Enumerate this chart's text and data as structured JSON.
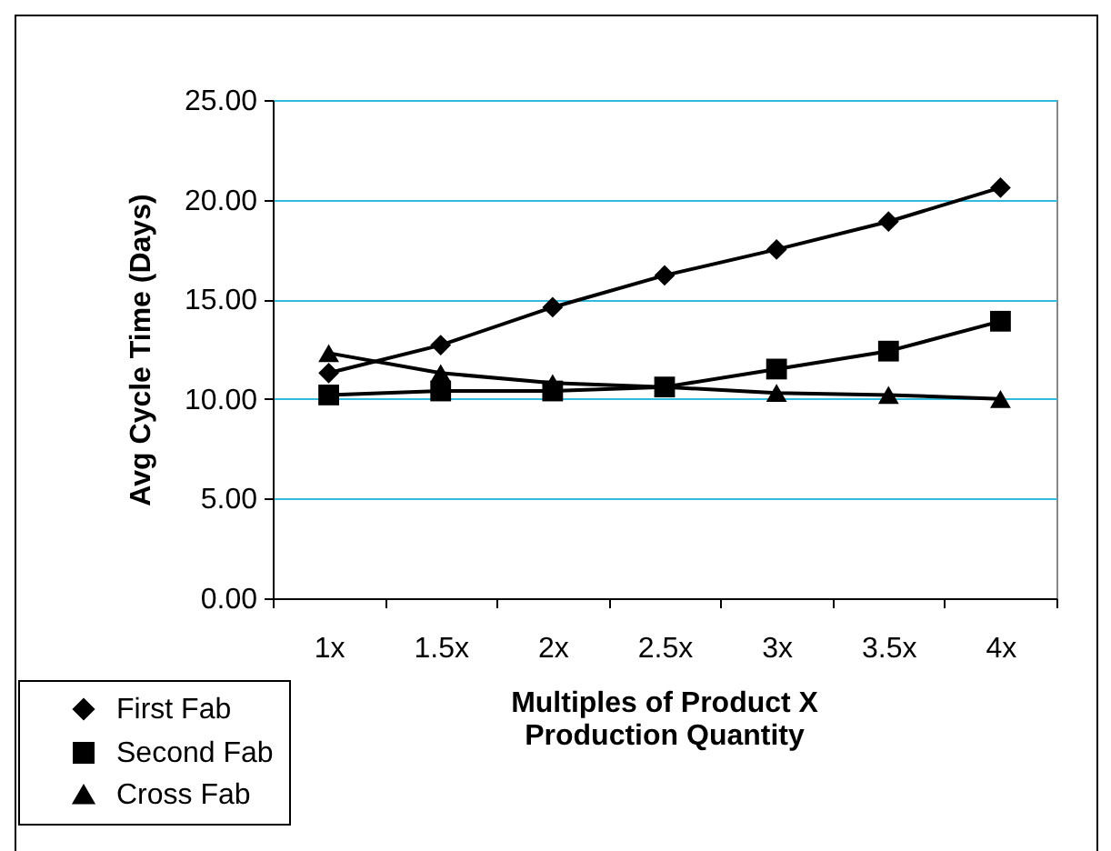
{
  "chart_data": {
    "type": "line",
    "xlabel": "Multiples of Product X\nProduction Quantity",
    "ylabel": "Avg Cycle Time (Days)",
    "categories": [
      "1x",
      "1.5x",
      "2x",
      "2.5x",
      "3x",
      "3.5x",
      "4x"
    ],
    "series": [
      {
        "name": "First Fab",
        "color": "#000000",
        "marker": "diamond",
        "values": [
          11.3,
          12.7,
          14.6,
          16.2,
          17.5,
          18.9,
          20.6
        ]
      },
      {
        "name": "Second Fab",
        "color": "#000000",
        "marker": "square",
        "values": [
          10.2,
          10.4,
          10.4,
          10.6,
          11.5,
          12.4,
          13.9
        ]
      },
      {
        "name": "Cross Fab",
        "color": "#000000",
        "marker": "triangle",
        "values": [
          12.3,
          11.3,
          10.8,
          10.6,
          10.3,
          10.2,
          10.0
        ]
      }
    ],
    "ylim": [
      0,
      25
    ],
    "yticks": [
      {
        "value": 0,
        "label": "0.00"
      },
      {
        "value": 5,
        "label": "5.00"
      },
      {
        "value": 10,
        "label": "10.00"
      },
      {
        "value": 15,
        "label": "15.00"
      },
      {
        "value": 20,
        "label": "20.00"
      },
      {
        "value": 25,
        "label": "25.00"
      }
    ],
    "grid": "y",
    "legend": "bottom left",
    "line_style": "solid"
  }
}
